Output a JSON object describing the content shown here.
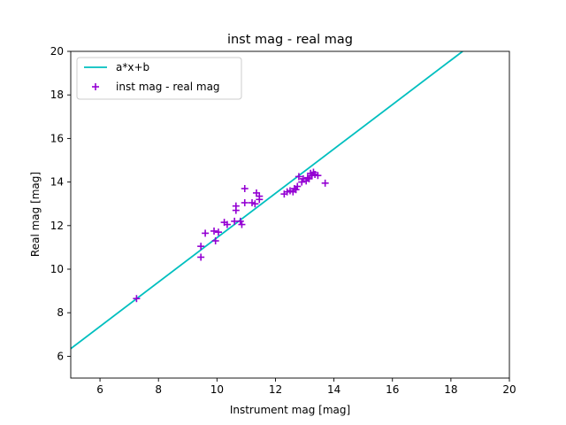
{
  "chart_data": {
    "type": "scatter",
    "title": "inst mag - real mag",
    "xlabel": "Instrument mag [mag]",
    "ylabel": "Real mag [mag]",
    "xlim": [
      5,
      20
    ],
    "ylim": [
      5,
      20
    ],
    "xticks": [
      "6",
      "8",
      "10",
      "12",
      "14",
      "16",
      "18",
      "20"
    ],
    "yticks": [
      "6",
      "8",
      "10",
      "12",
      "14",
      "16",
      "18",
      "20"
    ],
    "grid": false,
    "legend_position": "top-left",
    "series": [
      {
        "name": "a*x+b",
        "kind": "line",
        "color": "#00bfbf",
        "x": [
          5,
          18.4
        ],
        "y": [
          6.35,
          20.0
        ]
      },
      {
        "name": "inst mag - real mag",
        "kind": "scatter",
        "marker": "+",
        "color": "#9400d3",
        "points": [
          [
            7.25,
            8.65
          ],
          [
            9.45,
            10.55
          ],
          [
            9.45,
            11.05
          ],
          [
            9.6,
            11.65
          ],
          [
            9.9,
            11.75
          ],
          [
            10.05,
            11.7
          ],
          [
            9.95,
            11.3
          ],
          [
            10.25,
            12.15
          ],
          [
            10.35,
            12.05
          ],
          [
            10.6,
            12.2
          ],
          [
            10.65,
            12.7
          ],
          [
            10.65,
            12.9
          ],
          [
            10.8,
            12.2
          ],
          [
            10.85,
            12.05
          ],
          [
            10.95,
            13.05
          ],
          [
            10.95,
            13.7
          ],
          [
            11.2,
            13.05
          ],
          [
            11.3,
            13.0
          ],
          [
            11.35,
            13.5
          ],
          [
            11.45,
            13.2
          ],
          [
            11.45,
            13.35
          ],
          [
            12.3,
            13.45
          ],
          [
            12.4,
            13.55
          ],
          [
            12.5,
            13.6
          ],
          [
            12.6,
            13.55
          ],
          [
            12.65,
            13.7
          ],
          [
            12.7,
            13.65
          ],
          [
            12.75,
            13.8
          ],
          [
            12.8,
            14.25
          ],
          [
            12.9,
            14.0
          ],
          [
            12.95,
            14.15
          ],
          [
            13.05,
            14.05
          ],
          [
            13.1,
            14.2
          ],
          [
            13.15,
            14.15
          ],
          [
            13.2,
            14.4
          ],
          [
            13.25,
            14.3
          ],
          [
            13.3,
            14.45
          ],
          [
            13.35,
            14.35
          ],
          [
            13.45,
            14.3
          ],
          [
            13.7,
            13.95
          ]
        ]
      }
    ]
  }
}
